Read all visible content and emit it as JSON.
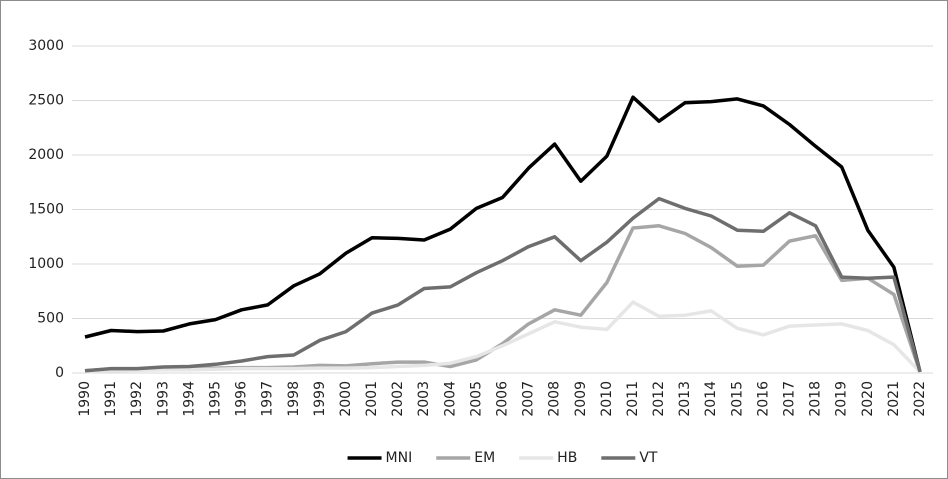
{
  "chart_data": {
    "type": "line",
    "categories": [
      "1990",
      "1991",
      "1992",
      "1993",
      "1994",
      "1995",
      "1996",
      "1997",
      "1998",
      "1999",
      "2000",
      "2001",
      "2002",
      "2003",
      "2004",
      "2005",
      "2006",
      "2007",
      "2008",
      "2009",
      "2010",
      "2011",
      "2012",
      "2013",
      "2014",
      "2015",
      "2016",
      "2017",
      "2018",
      "2019",
      "2020",
      "2021",
      "2022"
    ],
    "series": [
      {
        "name": "MNI",
        "color": "#000000",
        "values": [
          330,
          390,
          380,
          385,
          450,
          490,
          580,
          625,
          800,
          910,
          1100,
          1240,
          1235,
          1220,
          1320,
          1510,
          1610,
          1880,
          2100,
          1760,
          1990,
          2530,
          2310,
          2480,
          2490,
          2515,
          2450,
          2280,
          2080,
          1890,
          1310,
          970,
          10
        ]
      },
      {
        "name": "EM",
        "color": "#a6a6a6",
        "values": [
          20,
          35,
          35,
          40,
          40,
          45,
          50,
          50,
          55,
          70,
          65,
          85,
          100,
          100,
          60,
          120,
          270,
          450,
          580,
          530,
          830,
          1330,
          1350,
          1280,
          1150,
          980,
          990,
          1210,
          1260,
          850,
          870,
          720,
          10
        ]
      },
      {
        "name": "HB",
        "color": "#e6e6e6",
        "values": [
          10,
          20,
          25,
          30,
          30,
          35,
          40,
          40,
          40,
          45,
          45,
          50,
          60,
          70,
          90,
          150,
          250,
          360,
          470,
          420,
          400,
          650,
          520,
          530,
          570,
          410,
          350,
          430,
          440,
          450,
          390,
          260,
          10
        ]
      },
      {
        "name": "VT",
        "color": "#6e6e6e",
        "values": [
          20,
          40,
          40,
          55,
          60,
          80,
          110,
          150,
          165,
          300,
          380,
          550,
          625,
          775,
          790,
          920,
          1030,
          1160,
          1250,
          1030,
          1200,
          1420,
          1600,
          1510,
          1440,
          1310,
          1300,
          1470,
          1350,
          880,
          870,
          880,
          10
        ]
      }
    ],
    "ylim": [
      0,
      3000
    ],
    "yticks": [
      0,
      500,
      1000,
      1500,
      2000,
      2500,
      3000
    ],
    "grid": true,
    "legend": "bottom"
  }
}
